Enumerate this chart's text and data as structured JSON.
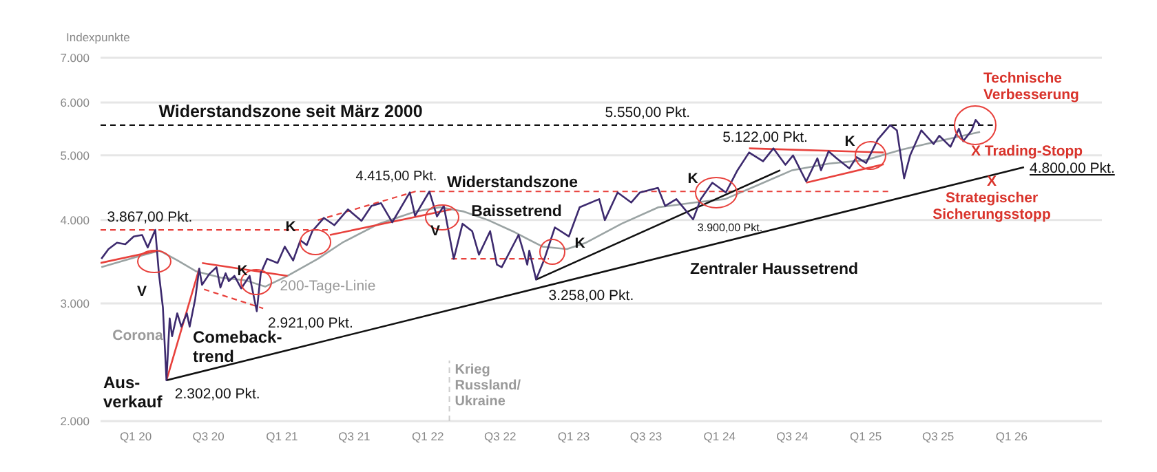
{
  "chart_data": {
    "type": "line",
    "ylabel": "Indexpunkte",
    "log": "y",
    "grid": "y",
    "xlim": [
      "2019-10-05",
      "2026-08-15"
    ],
    "xticks": [
      {
        "value": "2020-01-01",
        "label": "Q1 20"
      },
      {
        "value": "2020-07-01",
        "label": "Q3 20"
      },
      {
        "value": "2021-01-01",
        "label": "Q1 21"
      },
      {
        "value": "2021-07-01",
        "label": "Q3 21"
      },
      {
        "value": "2022-01-01",
        "label": "Q1 22"
      },
      {
        "value": "2022-07-01",
        "label": "Q3 22"
      },
      {
        "value": "2023-01-01",
        "label": "Q1 23"
      },
      {
        "value": "2023-07-01",
        "label": "Q3 23"
      },
      {
        "value": "2024-01-01",
        "label": "Q1 24"
      },
      {
        "value": "2024-07-01",
        "label": "Q3 24"
      },
      {
        "value": "2025-01-01",
        "label": "Q1 25"
      },
      {
        "value": "2025-07-01",
        "label": "Q3 25"
      },
      {
        "value": "2026-01-01",
        "label": "Q1 26"
      }
    ],
    "ylim": [
      2000,
      7000
    ],
    "yticks": [
      {
        "value": 2000,
        "label": "2.000"
      },
      {
        "value": 3000,
        "label": "3.000"
      },
      {
        "value": 4000,
        "label": "4.000"
      },
      {
        "value": 5000,
        "label": "5.000"
      },
      {
        "value": 6000,
        "label": "6.000"
      },
      {
        "value": 7000,
        "label": "7.000"
      }
    ],
    "series": [
      {
        "type": "line",
        "color": "#9aa3a3",
        "line_style": "solid",
        "x": [
          "2019-10-07",
          "2020-01-01",
          "2020-03-01",
          "2020-04-15",
          "2020-06-01",
          "2020-08-01",
          "2020-10-01",
          "2020-11-20",
          "2021-01-15",
          "2021-04-01",
          "2021-06-01",
          "2021-09-01",
          "2021-12-01",
          "2022-02-01",
          "2022-04-01",
          "2022-06-01",
          "2022-08-01",
          "2022-10-15",
          "2022-12-15",
          "2023-02-01",
          "2023-05-01",
          "2023-08-01",
          "2023-11-01",
          "2024-01-15",
          "2024-04-01",
          "2024-07-01",
          "2024-10-01",
          "2025-01-01",
          "2025-04-01",
          "2025-07-01",
          "2025-10-14"
        ],
        "values": [
          3400,
          3520,
          3600,
          3480,
          3350,
          3280,
          3250,
          3180,
          3300,
          3500,
          3700,
          3950,
          4120,
          4180,
          4120,
          4000,
          3850,
          3650,
          3620,
          3700,
          3950,
          4180,
          4250,
          4300,
          4500,
          4750,
          4860,
          4920,
          5100,
          5250,
          5420
        ]
      },
      {
        "type": "line",
        "color": "#111111",
        "line_style": "dashed",
        "x": [
          "2019-10-05",
          "2025-11-15"
        ],
        "values": [
          5550,
          5550
        ]
      },
      {
        "type": "line",
        "color": "#e8413c",
        "line_style": "dashed",
        "x": [
          "2019-10-05",
          "2021-05-01"
        ],
        "values": [
          3867,
          3867
        ]
      },
      {
        "type": "line",
        "color": "#e8413c",
        "line_style": "solid",
        "x": [
          "2019-10-05",
          "2020-02-25"
        ],
        "values": [
          3450,
          3600
        ]
      },
      {
        "type": "line",
        "color": "#e8413c",
        "line_style": "solid",
        "x": [
          "2020-03-18",
          "2020-06-08"
        ],
        "values": [
          2302,
          3384
        ]
      },
      {
        "type": "line",
        "color": "#e8413c",
        "line_style": "solid",
        "x": [
          "2020-06-15",
          "2021-01-15"
        ],
        "values": [
          3450,
          3300
        ]
      },
      {
        "type": "line",
        "color": "#e8413c",
        "line_style": "dashed",
        "x": [
          "2020-06-20",
          "2020-11-15"
        ],
        "values": [
          3150,
          2950
        ]
      },
      {
        "type": "line",
        "color": "#e8413c",
        "line_style": "dashed",
        "x": [
          "2021-04-01",
          "2021-12-01",
          "2025-03-01"
        ],
        "values": [
          4000,
          4415,
          4415
        ]
      },
      {
        "type": "line",
        "color": "#e8413c",
        "line_style": "solid",
        "x": [
          "2021-05-01",
          "2022-03-01"
        ],
        "values": [
          3800,
          4150
        ]
      },
      {
        "type": "line",
        "color": "#e8413c",
        "line_style": "dashed",
        "x": [
          "2022-03-01",
          "2022-10-31"
        ],
        "values": [
          3500,
          3500
        ]
      },
      {
        "type": "line",
        "color": "#e8413c",
        "line_style": "solid",
        "x": [
          "2024-03-15",
          "2025-02-15"
        ],
        "values": [
          5122,
          5050
        ]
      },
      {
        "type": "line",
        "color": "#e8413c",
        "line_style": "solid",
        "x": [
          "2024-08-05",
          "2025-02-15"
        ],
        "values": [
          4550,
          4850
        ]
      },
      {
        "type": "line",
        "color": "#111111",
        "line_style": "solid",
        "x": [
          "2020-03-18",
          "2026-02-01"
        ],
        "values": [
          2302,
          4800
        ]
      },
      {
        "type": "line",
        "color": "#111111",
        "line_style": "solid",
        "x": [
          "2022-09-29",
          "2024-06-01"
        ],
        "values": [
          3258,
          4750
        ]
      },
      {
        "type": "line",
        "color": "#3d2a6e",
        "line_style": "solid",
        "x": [
          "2019-10-07",
          "2019-10-25",
          "2019-11-15",
          "2019-12-06",
          "2019-12-27",
          "2020-01-17",
          "2020-01-31",
          "2020-02-19",
          "2020-02-28",
          "2020-03-09",
          "2020-03-18",
          "2020-03-26",
          "2020-04-01",
          "2020-04-14",
          "2020-04-24",
          "2020-05-08",
          "2020-05-15",
          "2020-05-29",
          "2020-06-08",
          "2020-06-15",
          "2020-07-03",
          "2020-07-21",
          "2020-07-31",
          "2020-08-13",
          "2020-08-21",
          "2020-09-04",
          "2020-09-21",
          "2020-10-12",
          "2020-10-30",
          "2020-11-09",
          "2020-11-25",
          "2020-12-21",
          "2021-01-08",
          "2021-01-29",
          "2021-02-16",
          "2021-03-04",
          "2021-03-18",
          "2021-04-16",
          "2021-05-12",
          "2021-06-15",
          "2021-07-19",
          "2021-08-13",
          "2021-09-06",
          "2021-10-04",
          "2021-11-17",
          "2021-11-30",
          "2022-01-05",
          "2022-01-24",
          "2022-02-10",
          "2022-03-07",
          "2022-03-29",
          "2022-04-22",
          "2022-05-09",
          "2022-06-06",
          "2022-06-23",
          "2022-07-05",
          "2022-08-16",
          "2022-09-07",
          "2022-09-12",
          "2022-09-29",
          "2022-10-20",
          "2022-11-15",
          "2022-12-20",
          "2023-01-16",
          "2023-03-06",
          "2023-03-20",
          "2023-04-21",
          "2023-05-25",
          "2023-06-16",
          "2023-07-31",
          "2023-08-18",
          "2023-09-15",
          "2023-10-27",
          "2023-11-15",
          "2023-12-14",
          "2024-01-17",
          "2024-02-15",
          "2024-03-15",
          "2024-04-19",
          "2024-05-15",
          "2024-06-14",
          "2024-07-03",
          "2024-08-05",
          "2024-09-02",
          "2024-09-11",
          "2024-09-30",
          "2024-10-20",
          "2024-11-21",
          "2024-12-09",
          "2025-01-02",
          "2025-01-31",
          "2025-03-03",
          "2025-03-20",
          "2025-04-07",
          "2025-04-22",
          "2025-05-20",
          "2025-06-20",
          "2025-07-04",
          "2025-08-01",
          "2025-08-22",
          "2025-09-02",
          "2025-09-23",
          "2025-10-03",
          "2025-10-14"
        ],
        "values": [
          3500,
          3620,
          3700,
          3680,
          3780,
          3800,
          3640,
          3867,
          3330,
          2960,
          2302,
          2850,
          2680,
          2900,
          2770,
          2900,
          2770,
          3050,
          3384,
          3200,
          3320,
          3400,
          3170,
          3330,
          3240,
          3300,
          3160,
          3300,
          2921,
          3330,
          3500,
          3450,
          3650,
          3480,
          3730,
          3670,
          3850,
          4030,
          3930,
          4150,
          3990,
          4200,
          4240,
          3970,
          4400,
          4060,
          4415,
          4050,
          4200,
          3500,
          3950,
          3850,
          3550,
          3850,
          3430,
          3400,
          3800,
          3430,
          3600,
          3258,
          3500,
          3900,
          3780,
          4180,
          4300,
          4000,
          4400,
          4250,
          4400,
          4470,
          4200,
          4300,
          4010,
          4300,
          4550,
          4400,
          4750,
          5050,
          4900,
          5122,
          4840,
          5000,
          4570,
          4950,
          4750,
          5070,
          4950,
          4780,
          4970,
          4870,
          5280,
          5550,
          5450,
          4620,
          5000,
          5450,
          5200,
          5350,
          5150,
          5480,
          5250,
          5450,
          5650,
          5550
        ]
      }
    ],
    "ref_lines": [
      {
        "axis": "x",
        "value": "2022-02-24",
        "label": "Krieg\nRussland/\nUkraine",
        "color": "#cccccc",
        "line_style": "dashed"
      }
    ],
    "annotations": [
      {
        "text": "5.550,00 Pkt.",
        "x": "2023-07-05",
        "y": 5550
      },
      {
        "text": "3.867,00 Pkt.",
        "x": "2020-02-19",
        "y": 3867
      },
      {
        "text": "2.302,00 Pkt.",
        "x": "2020-03-18",
        "y": 2302
      },
      {
        "text": "2.921,00 Pkt.",
        "x": "2020-10-30",
        "y": 2921
      },
      {
        "text": "4.415,00 Pkt.",
        "x": "2022-01-05",
        "y": 4415
      },
      {
        "text": "3.258,00 Pkt.",
        "x": "2022-09-29",
        "y": 3258
      },
      {
        "text": "5.122,00 Pkt.",
        "x": "2024-05-15",
        "y": 5122
      },
      {
        "text": "4.800,00 Pkt.",
        "x": "2026-02-01",
        "y": 4800
      },
      "Widerstandszone seit März 2000",
      "Widerstandszone",
      "Baissetrend",
      "Zentraler Haussetrend",
      "3.900,00 Pkt.",
      "Comeback-\ntrend",
      "Aus-\nverkauf",
      "Corona",
      "200-Tage-Linie",
      "Technische\nVerbesserung",
      "X Trading-Stopp",
      "X\nStrategischer\nSicherungsstopp",
      "V",
      "K",
      "K",
      "V",
      "K",
      "K",
      "K"
    ]
  }
}
